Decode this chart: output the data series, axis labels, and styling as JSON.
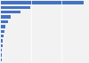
{
  "values": [
    550,
    195,
    130,
    65,
    45,
    32,
    22,
    17,
    13,
    10,
    7,
    5,
    3
  ],
  "bar_color": "#4472c4",
  "background_color": "#f2f2f2",
  "gridline_color": "#ffffff",
  "xlim": [
    0,
    580
  ],
  "grid_vals": [
    200,
    400
  ]
}
